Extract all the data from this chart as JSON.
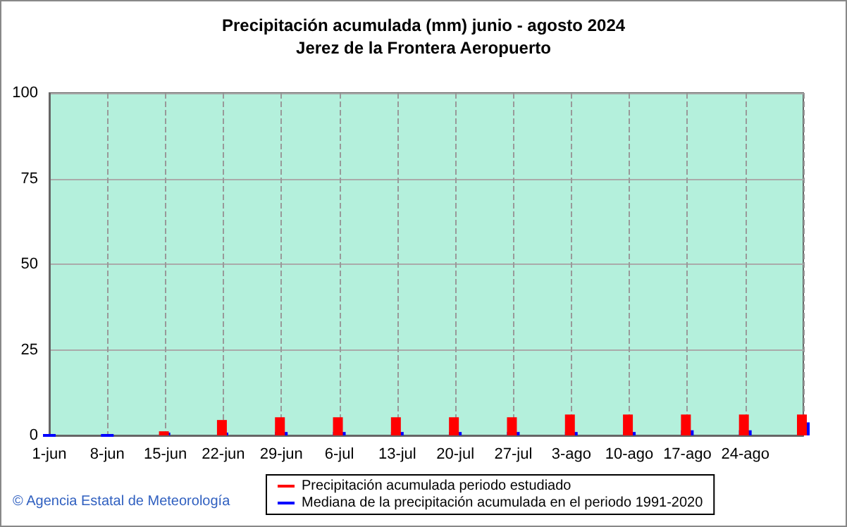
{
  "chart_data": {
    "type": "bar",
    "title": "Precipitación acumulada (mm) junio - agosto 2024",
    "subtitle": "Jerez de la Frontera Aeropuerto",
    "categories": [
      "1-jun",
      "8-jun",
      "15-jun",
      "22-jun",
      "29-jun",
      "6-jul",
      "13-jul",
      "20-jul",
      "27-jul",
      "3-ago",
      "10-ago",
      "17-ago",
      "24-ago",
      null
    ],
    "series": [
      {
        "name": "Precipitación acumulada periodo estudiado",
        "color": "#ff0000",
        "values": [
          0,
          0,
          1.2,
          4.5,
          5.3,
          5.3,
          5.3,
          5.3,
          5.3,
          6.1,
          6.1,
          6.1,
          6.1,
          6.1
        ]
      },
      {
        "name": "Mediana de la precipitación acumulada en el periodo 1991-2020",
        "color": "#0000ff",
        "values": [
          0,
          0,
          0.8,
          0.8,
          1.0,
          1.0,
          1.0,
          1.0,
          1.0,
          1.0,
          1.0,
          1.5,
          1.5,
          3.8
        ]
      }
    ],
    "ylim": [
      0,
      100
    ],
    "yticks": [
      0,
      25,
      50,
      75,
      100
    ],
    "grid": true,
    "legend": "bottom",
    "annotations": [
      "© Agencia Estatal de Meteorología"
    ]
  }
}
